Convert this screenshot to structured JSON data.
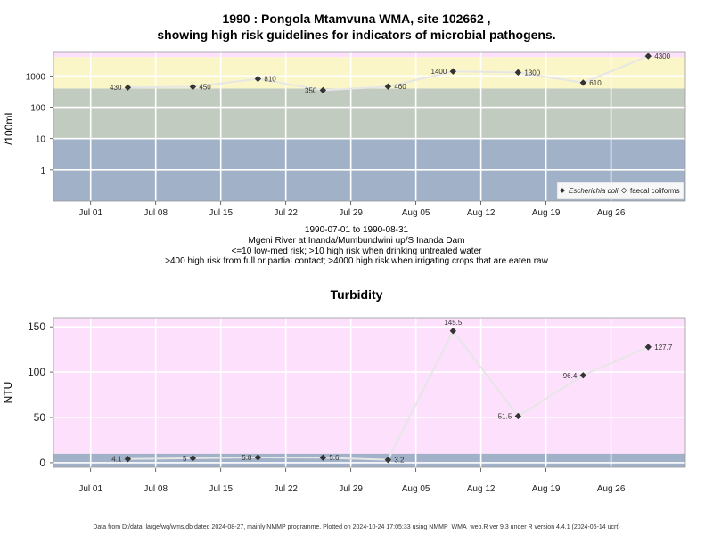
{
  "colors": {
    "risk_high": "#fbf6c8",
    "risk_extreme": "#fde0fc",
    "risk_med": "#c2cbc0",
    "risk_low": "#a1b1c8",
    "turb_bg": "#fde0fc",
    "turb_low": "#a1b1c8",
    "line": "#e6e6e6",
    "gridline": "#ffffff",
    "point": "#333333"
  },
  "x_axis": {
    "start": "1990-07-01",
    "end": "1990-08-31",
    "ticks": [
      {
        "date": "1990-07-01",
        "label": "Jul 01"
      },
      {
        "date": "1990-07-08",
        "label": "Jul 08"
      },
      {
        "date": "1990-07-15",
        "label": "Jul 15"
      },
      {
        "date": "1990-07-22",
        "label": "Jul 22"
      },
      {
        "date": "1990-07-29",
        "label": "Jul 29"
      },
      {
        "date": "1990-08-05",
        "label": "Aug 05"
      },
      {
        "date": "1990-08-12",
        "label": "Aug 12"
      },
      {
        "date": "1990-08-19",
        "label": "Aug 19"
      },
      {
        "date": "1990-08-26",
        "label": "Aug 26"
      }
    ]
  },
  "header": {
    "title_line1": "1990 : Pongola Mtamvuna WMA, site 102662 ,",
    "title_line2": "showing high risk guidelines for indicators of microbial pathogens."
  },
  "captions": {
    "date_range": "1990-07-01 to 1990-08-31",
    "site": "Mgeni River at Inanda/Mumbundwini up/S Inanda Dam",
    "risk1": "<=10 low-med risk; >10 high risk when drinking untreated water",
    "risk2": ">400 high risk from full or partial contact; >4000 high risk when irrigating crops that are eaten raw"
  },
  "turbidity_title": "Turbidity",
  "footer": "Data from D:/data_large/wq/wms.db dated 2024-08-27, mainly NMMP programme. Plotted on 2024-10-24 17:05:33 using NMMP_WMA_web.R ver 9.3 under R version 4.4.1 (2024-06-14 ucrt)",
  "chart_data": [
    {
      "type": "line",
      "scale": "log10",
      "ylabel": "/100mL",
      "ylim": [
        0.1,
        6000
      ],
      "yticks": [
        1,
        10,
        100,
        1000
      ],
      "ytick_labels": [
        "1",
        "10",
        "100",
        "1000"
      ],
      "bands": [
        {
          "from": 0.1,
          "to": 10,
          "color_key": "risk_low"
        },
        {
          "from": 10,
          "to": 400,
          "color_key": "risk_med"
        },
        {
          "from": 400,
          "to": 4000,
          "color_key": "risk_high"
        },
        {
          "from": 4000,
          "to": 6000,
          "color_key": "risk_extreme"
        }
      ],
      "legend": {
        "position": "bottom-right",
        "items": [
          "Escherichia coli",
          "faecal coliforms"
        ]
      },
      "series": [
        {
          "name": "Escherichia coli",
          "x": [
            "1990-07-05",
            "1990-07-12",
            "1990-07-19",
            "1990-07-26",
            "1990-08-02",
            "1990-08-09",
            "1990-08-16",
            "1990-08-23",
            "1990-08-30"
          ],
          "y": [
            430,
            450,
            810,
            350,
            460,
            1400,
            1300,
            610,
            4300
          ],
          "labels": [
            "430",
            "450",
            "810",
            "350",
            "460",
            "1400",
            "1300",
            "610",
            "4300"
          ]
        }
      ]
    },
    {
      "type": "line",
      "scale": "linear",
      "ylabel": "NTU",
      "ylim": [
        -5,
        160
      ],
      "yticks": [
        0,
        50,
        100,
        150
      ],
      "ytick_labels": [
        "0",
        "50",
        "100",
        "150"
      ],
      "bands": [
        {
          "from": -5,
          "to": 10,
          "color_key": "turb_low"
        },
        {
          "from": 10,
          "to": 160,
          "color_key": "turb_bg"
        }
      ],
      "series": [
        {
          "name": "",
          "x": [
            "1990-07-05",
            "1990-07-12",
            "1990-07-19",
            "1990-07-26",
            "1990-08-02",
            "1990-08-09",
            "1990-08-16",
            "1990-08-23",
            "1990-08-30"
          ],
          "y": [
            4.1,
            5,
            5.8,
            5.6,
            3.2,
            145.5,
            51.5,
            96.4,
            127.7
          ],
          "labels": [
            "4.1",
            "5",
            "5.8",
            "5.6",
            "3.2",
            "145.5",
            "51.5",
            "96.4",
            "127.7"
          ]
        }
      ]
    }
  ]
}
